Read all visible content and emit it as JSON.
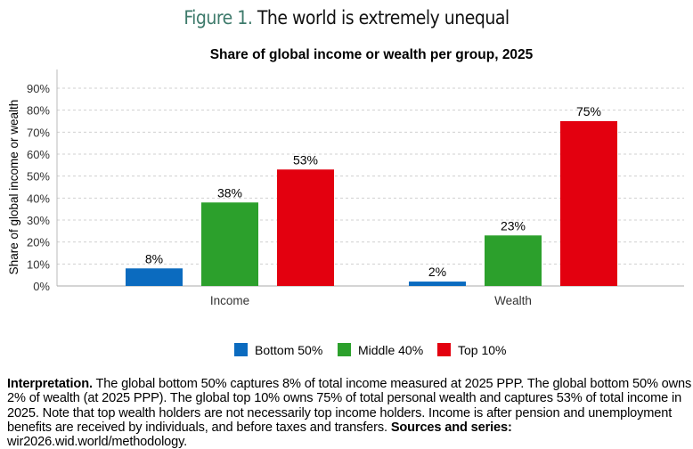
{
  "figure": {
    "number": "Figure 1.",
    "title": "The world is extremely unequal"
  },
  "chart_data": {
    "type": "bar",
    "title": "Share of global income or wealth per group, 2025",
    "ylabel": "Share of global income or wealth",
    "xlabel": "",
    "categories": [
      "Income",
      "Wealth"
    ],
    "ylim": [
      0,
      90
    ],
    "yticks": [
      0,
      10,
      20,
      30,
      40,
      50,
      60,
      70,
      80,
      90
    ],
    "ytick_labels": [
      "0%",
      "10%",
      "20%",
      "30%",
      "40%",
      "50%",
      "60%",
      "70%",
      "80%",
      "90%"
    ],
    "grid": true,
    "legend_placement": "bottom",
    "series": [
      {
        "name": "Bottom 50%",
        "color": "#0b6bbf",
        "values": [
          8,
          2
        ],
        "labels": [
          "8%",
          "2%"
        ]
      },
      {
        "name": "Middle 40%",
        "color": "#2ca02c",
        "values": [
          38,
          23
        ],
        "labels": [
          "38%",
          "23%"
        ]
      },
      {
        "name": "Top 10%",
        "color": "#e3000f",
        "values": [
          53,
          75
        ],
        "labels": [
          "53%",
          "75%"
        ]
      }
    ]
  },
  "note": {
    "lead": "Interpretation.",
    "body": " The global bottom 50% captures 8% of total income measured at 2025 PPP. The global bottom 50% owns 2% of wealth (at 2025 PPP). The global top 10% owns 75% of total personal wealth and captures 53% of total income in 2025. Note that top wealth holders are not necessarily top income holders. Income is after pension and unemployment benefits are received by individuals, and before taxes and transfers. ",
    "sources_label": "Sources and series:",
    "sources_value": " wir2026.wid.world/methodology."
  }
}
